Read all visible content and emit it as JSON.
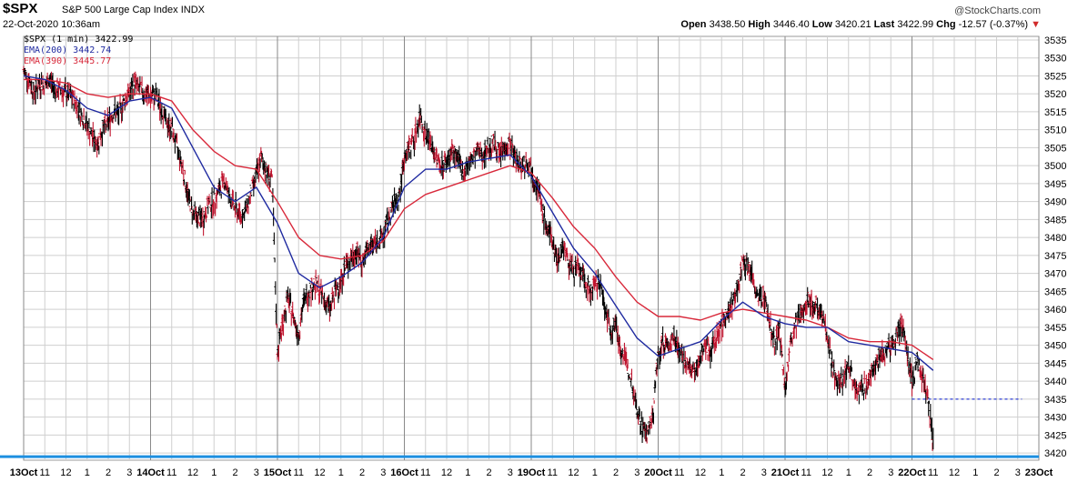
{
  "header": {
    "symbol": "$SPX",
    "description": "S&P 500 Large Cap Index",
    "exchange": "INDX",
    "date": "22-Oct-2020 10:36am",
    "copyright": "@StockCharts.com",
    "open_label": "Open",
    "open_value": "3438.50",
    "high_label": "High",
    "high_value": "3446.40",
    "low_label": "Low",
    "low_value": "3420.21",
    "last_label": "Last",
    "last_value": "3422.99",
    "chg_label": "Chg",
    "chg_value": "-12.57 (-0.37%)",
    "chg_arrow": "▼"
  },
  "legend": {
    "price": "$SPX (1 min) 3422.99",
    "ema200": "EMA(200) 3442.74",
    "ema390": "EMA(390) 3445.77"
  },
  "colors": {
    "bar": "#000000",
    "bar_down": "#c0152f",
    "ema200": "#1f2aa0",
    "ema390": "#d8283a",
    "grid": "#cfcfcf",
    "baseline": "#1d8fe0",
    "last_close_line": "#2f3fd6"
  },
  "chart_data": {
    "type": "line",
    "y_axis_side": "right",
    "ylim": [
      3418,
      3536
    ],
    "y_ticks": [
      3420,
      3425,
      3430,
      3435,
      3440,
      3445,
      3450,
      3455,
      3460,
      3465,
      3470,
      3475,
      3480,
      3485,
      3490,
      3495,
      3500,
      3505,
      3510,
      3515,
      3520,
      3525,
      3530,
      3535
    ],
    "x_tick_labels": [
      "13Oct",
      "11",
      "12",
      "1",
      "2",
      "3",
      "14Oct",
      "11",
      "12",
      "1",
      "2",
      "3",
      "15Oct",
      "11",
      "12",
      "1",
      "2",
      "3",
      "16Oct",
      "11",
      "12",
      "1",
      "2",
      "3",
      "19Oct",
      "11",
      "12",
      "1",
      "2",
      "3",
      "20Oct",
      "11",
      "12",
      "1",
      "2",
      "3",
      "21Oct",
      "11",
      "12",
      "1",
      "2",
      "3",
      "22Oct",
      "11",
      "12",
      "1",
      "2",
      "3",
      "23Oct"
    ],
    "session_start_index": [
      0,
      6,
      12,
      18,
      24,
      30,
      36,
      42,
      48
    ],
    "series": [
      {
        "name": "$SPX (1 min)",
        "style": "ohlc-bars",
        "x": [
          0,
          0.25,
          0.5,
          0.75,
          1,
          1.25,
          1.5,
          1.75,
          2,
          2.25,
          2.5,
          2.75,
          3,
          3.25,
          3.5,
          3.75,
          4,
          4.25,
          4.5,
          4.75,
          5,
          5.25,
          5.5,
          5.75,
          6,
          6.25,
          6.5,
          6.75,
          7,
          7.25,
          7.5,
          7.75,
          8,
          8.25,
          8.5,
          8.75,
          9,
          9.25,
          9.5,
          9.75,
          10,
          10.25,
          10.5,
          10.75,
          11,
          11.25,
          11.5,
          11.75,
          12,
          12.25,
          12.5,
          12.75,
          13,
          13.25,
          13.5,
          13.75,
          14,
          14.25,
          14.5,
          14.75,
          15,
          15.25,
          15.5,
          15.75,
          16,
          16.25,
          16.5,
          16.75,
          17,
          17.25,
          17.5,
          17.75,
          18,
          18.25,
          18.5,
          18.75,
          19,
          19.25,
          19.5,
          19.75,
          20,
          20.25,
          20.5,
          20.75,
          21,
          21.25,
          21.5,
          21.75,
          22,
          22.25,
          22.5,
          22.75,
          23,
          23.25,
          23.5,
          23.75,
          24,
          24.25,
          24.5,
          24.75,
          25,
          25.25,
          25.5,
          25.75,
          26,
          26.25,
          26.5,
          26.75,
          27,
          27.25,
          27.5,
          27.75,
          28,
          28.25,
          28.5,
          28.75,
          29,
          29.25,
          29.5,
          29.75,
          30,
          30.25,
          30.5,
          30.75,
          31,
          31.25,
          31.5,
          31.75,
          32,
          32.25,
          32.5,
          32.75,
          33,
          33.25,
          33.5,
          33.75,
          34,
          34.25,
          34.5,
          34.75,
          35,
          35.25,
          35.5,
          35.75,
          36,
          36.25,
          36.5,
          36.75,
          37,
          37.25,
          37.5,
          37.75,
          38,
          38.25,
          38.5,
          38.75,
          39,
          39.25,
          39.5,
          39.75,
          40,
          40.25,
          40.5,
          40.75,
          41,
          41.25,
          41.5,
          41.75,
          42,
          42.25,
          42.5,
          42.75,
          43.0
        ],
        "values": [
          3526,
          3524,
          3520,
          3523,
          3522,
          3524,
          3521,
          3521,
          3520,
          3519,
          3517,
          3514,
          3511,
          3508,
          3506,
          3510,
          3512,
          3515,
          3514,
          3518,
          3520,
          3523,
          3521,
          3520,
          3519,
          3519,
          3516,
          3512,
          3510,
          3505,
          3500,
          3492,
          3487,
          3485,
          3485,
          3489,
          3490,
          3493,
          3496,
          3491,
          3488,
          3486,
          3487,
          3492,
          3497,
          3502,
          3498,
          3496,
          3448,
          3456,
          3463,
          3458,
          3453,
          3462,
          3465,
          3467,
          3465,
          3462,
          3460,
          3465,
          3468,
          3472,
          3474,
          3476,
          3473,
          3476,
          3478,
          3479,
          3480,
          3485,
          3489,
          3491,
          3502,
          3505,
          3508,
          3514,
          3509,
          3506,
          3502,
          3500,
          3501,
          3504,
          3502,
          3498,
          3500,
          3502,
          3504,
          3503,
          3505,
          3506,
          3503,
          3505,
          3506,
          3502,
          3500,
          3501,
          3499,
          3495,
          3488,
          3482,
          3479,
          3473,
          3478,
          3473,
          3471,
          3471,
          3468,
          3465,
          3466,
          3468,
          3460,
          3454,
          3456,
          3448,
          3445,
          3440,
          3432,
          3427,
          3425,
          3430,
          3447,
          3451,
          3449,
          3453,
          3449,
          3445,
          3443,
          3442,
          3447,
          3450,
          3448,
          3452,
          3455,
          3459,
          3461,
          3465,
          3474,
          3472,
          3468,
          3462,
          3464,
          3457,
          3450,
          3454,
          3438,
          3449,
          3455,
          3458,
          3463,
          3461,
          3461,
          3459,
          3453,
          3443,
          3439,
          3440,
          3445,
          3440,
          3437,
          3438,
          3440,
          3445,
          3447,
          3448,
          3450,
          3452,
          3455,
          3449,
          3440,
          3445,
          3441,
          3436,
          3423
        ]
      },
      {
        "name": "EMA(200)",
        "style": "line",
        "x": [
          0,
          1,
          2,
          3,
          4,
          5,
          6,
          7,
          8,
          9,
          10,
          11,
          12,
          13,
          14,
          15,
          16,
          17,
          18,
          19,
          20,
          21,
          22,
          23,
          24,
          25,
          26,
          27,
          28,
          29,
          30,
          31,
          32,
          33,
          34,
          35,
          36,
          37,
          38,
          39,
          40,
          41,
          42,
          43
        ],
        "values": [
          3525,
          3524,
          3521,
          3516,
          3514,
          3518,
          3519,
          3516,
          3505,
          3494,
          3490,
          3494,
          3484,
          3470,
          3466,
          3469,
          3473,
          3480,
          3494,
          3499,
          3499,
          3501,
          3502,
          3503,
          3497,
          3487,
          3477,
          3470,
          3461,
          3452,
          3447,
          3449,
          3451,
          3457,
          3462,
          3458,
          3456,
          3455,
          3455,
          3451,
          3450,
          3449,
          3448,
          3443
        ]
      },
      {
        "name": "EMA(390)",
        "style": "line",
        "x": [
          0,
          1,
          2,
          3,
          4,
          5,
          6,
          7,
          8,
          9,
          10,
          11,
          12,
          13,
          14,
          15,
          16,
          17,
          18,
          19,
          20,
          21,
          22,
          23,
          24,
          25,
          26,
          27,
          28,
          29,
          30,
          31,
          32,
          33,
          34,
          35,
          36,
          37,
          38,
          39,
          40,
          41,
          42,
          43
        ],
        "values": [
          3524,
          3524,
          3523,
          3520,
          3519,
          3520,
          3520,
          3518,
          3510,
          3504,
          3500,
          3499,
          3490,
          3480,
          3475,
          3474,
          3475,
          3479,
          3488,
          3492,
          3494,
          3496,
          3498,
          3500,
          3498,
          3491,
          3483,
          3477,
          3469,
          3462,
          3458,
          3458,
          3457,
          3459,
          3460,
          3459,
          3458,
          3457,
          3455,
          3452,
          3451,
          3451,
          3450,
          3446
        ]
      }
    ],
    "reference_lines": [
      {
        "style": "dashed",
        "y": 3435,
        "x_from": 42.0,
        "x_to": 47.2
      },
      {
        "style": "solid",
        "y": 3420
      }
    ],
    "grid": true,
    "legend_placement": "top-left"
  }
}
